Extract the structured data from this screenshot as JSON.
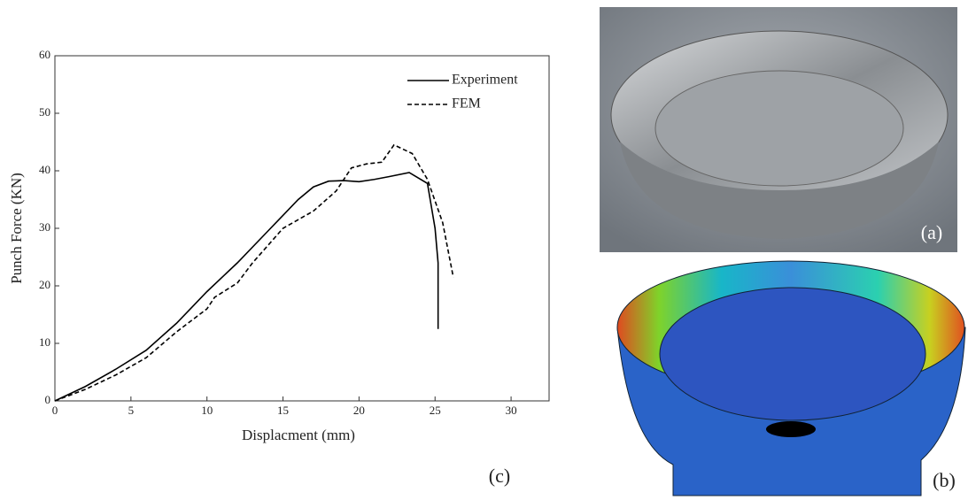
{
  "chart_data": {
    "type": "line",
    "xlabel": "Displacment (mm)",
    "ylabel": "Punch Force (KN)",
    "xlim": [
      0,
      32.5
    ],
    "ylim": [
      0,
      60
    ],
    "xticks": [
      0,
      5,
      10,
      15,
      20,
      25,
      30
    ],
    "yticks": [
      0,
      10,
      20,
      30,
      40,
      50,
      60
    ],
    "legend": "upper right",
    "series": [
      {
        "name": "Experiment",
        "color": "#000000",
        "dash": false,
        "x": [
          0,
          2,
          4,
          6,
          8,
          10,
          12,
          14,
          16,
          17,
          18,
          19,
          20,
          21,
          22,
          23.3,
          24.5,
          25,
          25.2,
          25.2
        ],
        "values": [
          0,
          2.5,
          5.5,
          8.8,
          13.5,
          19,
          24,
          29.5,
          35,
          37.2,
          38.2,
          38.3,
          38.1,
          38.5,
          39,
          39.7,
          37.8,
          30,
          24,
          12.5
        ]
      },
      {
        "name": "FEM",
        "color": "#000000",
        "dash": true,
        "x": [
          0,
          2,
          4,
          6,
          8,
          10,
          10.5,
          12,
          13,
          15,
          17,
          18.5,
          19.5,
          20.5,
          21.5,
          22.3,
          23.5,
          24.5,
          25.5,
          26.2
        ],
        "values": [
          0,
          2,
          4.5,
          7.5,
          12,
          16,
          18,
          20.5,
          24,
          30,
          33,
          36.5,
          40.5,
          41.2,
          41.5,
          44.5,
          43,
          38.5,
          31,
          21.5
        ]
      }
    ],
    "panel_label": "(c)"
  },
  "photo_label": "(a)",
  "fem_label": "(b)"
}
